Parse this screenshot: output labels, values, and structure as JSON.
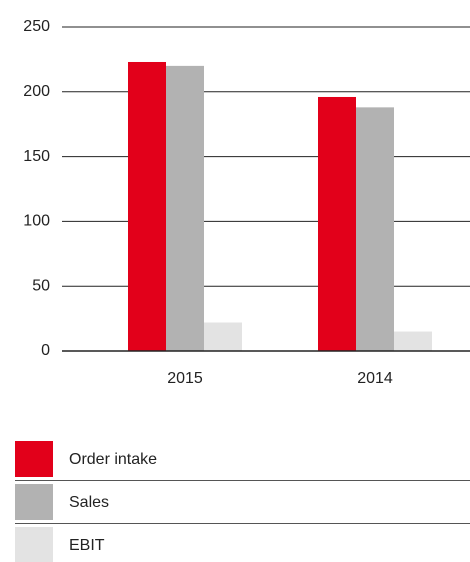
{
  "chart_data": {
    "type": "bar",
    "categories": [
      "2015",
      "2014"
    ],
    "series": [
      {
        "name": "Order intake",
        "color": "#e2001a",
        "values": [
          223,
          196
        ]
      },
      {
        "name": "Sales",
        "color": "#b2b2b2",
        "values": [
          220,
          188
        ]
      },
      {
        "name": "EBIT",
        "color": "#e3e3e3",
        "values": [
          22,
          15
        ]
      }
    ],
    "ylim": [
      0,
      250
    ],
    "yticks": [
      0,
      50,
      100,
      150,
      200,
      250
    ],
    "grid": true,
    "legend": "bottom"
  }
}
